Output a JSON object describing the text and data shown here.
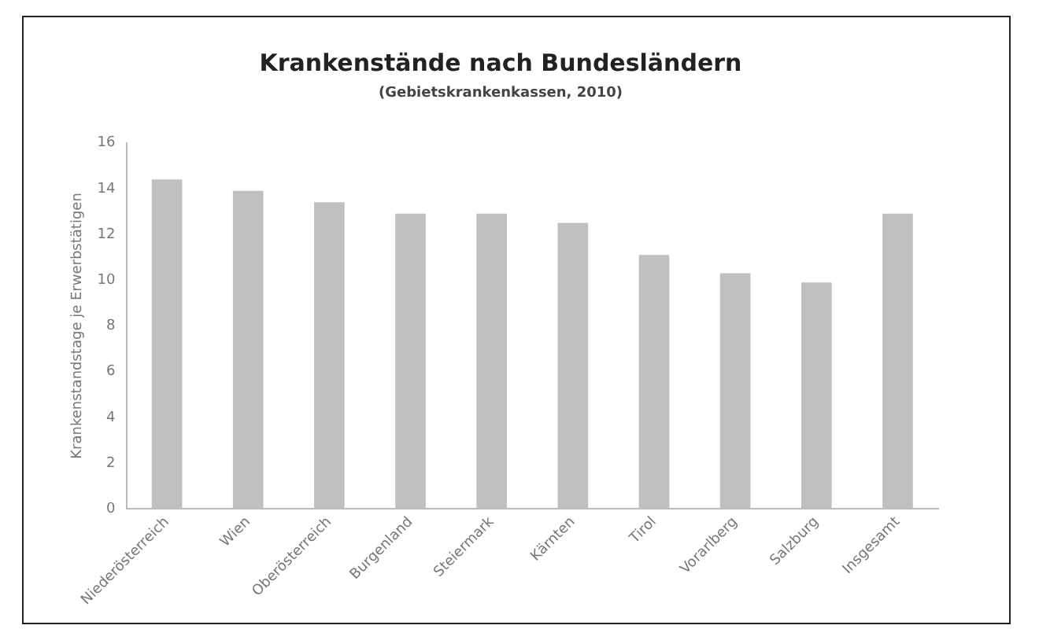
{
  "chart_data": {
    "type": "bar",
    "title": "Krankenstände nach Bundesländern",
    "subtitle": "(Gebietskrankenkassen, 2010)",
    "ylabel": "Krankenstandstage je Erwerbstätigen",
    "categories": [
      "Niederösterreich",
      "Wien",
      "Oberösterreich",
      "Burgenland",
      "Steiermark",
      "Kärnten",
      "Tirol",
      "Vorarlberg",
      "Salzburg",
      "Insgesamt"
    ],
    "values": [
      14.4,
      13.9,
      13.4,
      12.9,
      12.9,
      12.5,
      11.1,
      10.3,
      9.9,
      12.9
    ],
    "color": "#c0c0c0",
    "ylim": [
      0,
      16
    ],
    "yticks": [
      0,
      2,
      4,
      6,
      8,
      10,
      12,
      14,
      16
    ],
    "grid": false,
    "legend": false
  }
}
